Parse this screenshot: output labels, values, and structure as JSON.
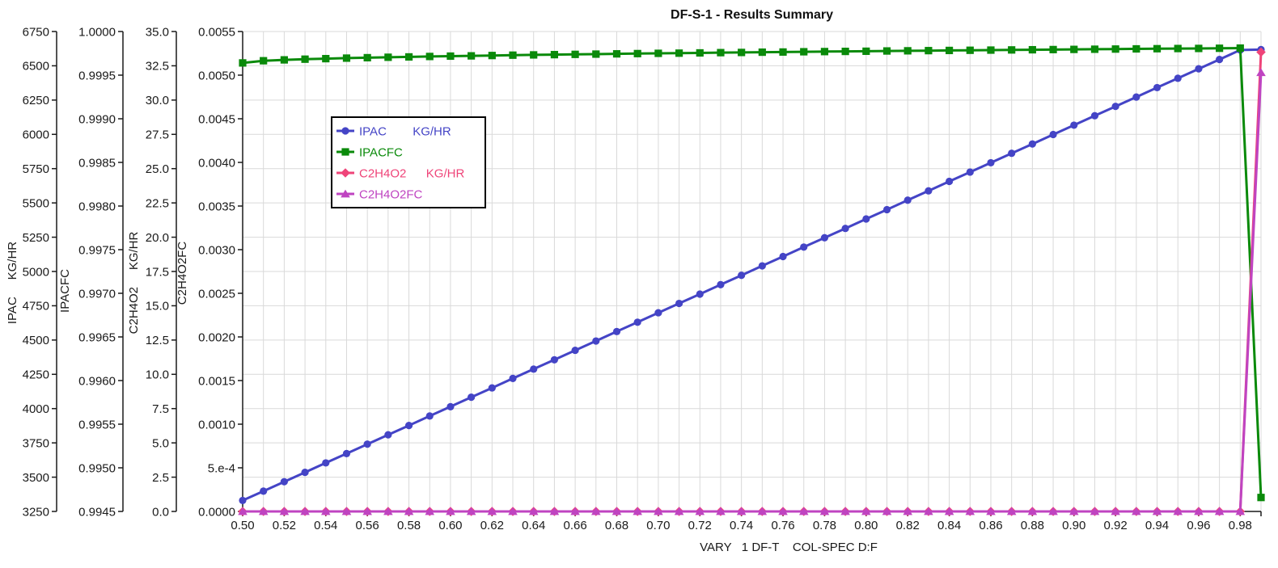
{
  "title": "DF-S-1 - Results Summary",
  "x_axis": {
    "label": "VARY   1 DF-T    COL-SPEC D:F",
    "min": 0.5,
    "max": 0.99,
    "tick_step": 0.02,
    "grid_step": 0.01,
    "tick_labels": [
      "0.50",
      "0.52",
      "0.54",
      "0.56",
      "0.58",
      "0.60",
      "0.62",
      "0.64",
      "0.66",
      "0.68",
      "0.70",
      "0.72",
      "0.74",
      "0.76",
      "0.78",
      "0.80",
      "0.82",
      "0.84",
      "0.86",
      "0.88",
      "0.90",
      "0.92",
      "0.94",
      "0.96",
      "0.98"
    ]
  },
  "y_axes": [
    {
      "id": "ipac",
      "title_parts": [
        "IPAC",
        "KG/HR"
      ],
      "min": 3250,
      "max": 6750,
      "tick_labels": [
        "6750",
        "6500",
        "6250",
        "6000",
        "5750",
        "5500",
        "5250",
        "5000",
        "4750",
        "4500",
        "4250",
        "4000",
        "3750",
        "3500",
        "3250"
      ]
    },
    {
      "id": "ipacfc",
      "title_parts": [
        "IPACFC"
      ],
      "min": 0.9945,
      "max": 1.0,
      "tick_labels": [
        "1.0000",
        "0.9995",
        "0.9990",
        "0.9985",
        "0.9980",
        "0.9975",
        "0.9970",
        "0.9965",
        "0.9960",
        "0.9955",
        "0.9950",
        "0.9945"
      ]
    },
    {
      "id": "c2h4o2",
      "title_parts": [
        "C2H4O2",
        "KG/HR"
      ],
      "min": 0.0,
      "max": 35.0,
      "tick_labels": [
        "35.0",
        "32.5",
        "30.0",
        "27.5",
        "25.0",
        "22.5",
        "20.0",
        "17.5",
        "15.0",
        "12.5",
        "10.0",
        "7.5",
        "5.0",
        "2.5",
        "0.0"
      ]
    },
    {
      "id": "c2h4o2fc",
      "title_parts": [
        "C2H4O2FC"
      ],
      "min": 0.0,
      "max": 0.0055,
      "tick_labels": [
        "0.0055",
        "0.0050",
        "0.0045",
        "0.0040",
        "0.0035",
        "0.0030",
        "0.0025",
        "0.0020",
        "0.0015",
        "0.0010",
        "5.e-4",
        "0.0000"
      ]
    }
  ],
  "colors": {
    "ipac": "#4444c6",
    "ipacfc": "#0a8a0a",
    "c2h4o2": "#ef4479",
    "c2h4o2fc": "#bf44c1",
    "grid": "#d9d9d9",
    "axis": "#1a1a1a",
    "tick_text": "#1a1a1a",
    "legend_border": "#000000",
    "legend_bg": "#ffffff"
  },
  "chart_data": {
    "type": "line",
    "x": [
      0.5,
      0.51,
      0.52,
      0.53,
      0.54,
      0.55,
      0.56,
      0.57,
      0.58,
      0.59,
      0.6,
      0.61,
      0.62,
      0.63,
      0.64,
      0.65,
      0.66,
      0.67,
      0.68,
      0.69,
      0.7,
      0.71,
      0.72,
      0.73,
      0.74,
      0.75,
      0.76,
      0.77,
      0.78,
      0.79,
      0.8,
      0.81,
      0.82,
      0.83,
      0.84,
      0.85,
      0.86,
      0.87,
      0.88,
      0.89,
      0.9,
      0.91,
      0.92,
      0.93,
      0.94,
      0.95,
      0.96,
      0.97,
      0.98,
      0.99
    ],
    "series": [
      {
        "name": "IPAC",
        "units": "KG/HR",
        "axis": 0,
        "marker": "circle",
        "color": "#4444c6",
        "values": [
          3330,
          3398,
          3467,
          3535,
          3604,
          3672,
          3741,
          3809,
          3877,
          3946,
          4014,
          4083,
          4151,
          4220,
          4288,
          4356,
          4425,
          4493,
          4562,
          4630,
          4699,
          4767,
          4835,
          4904,
          4972,
          5041,
          5109,
          5178,
          5246,
          5314,
          5383,
          5451,
          5520,
          5588,
          5657,
          5725,
          5793,
          5862,
          5930,
          5999,
          6067,
          6136,
          6204,
          6272,
          6341,
          6409,
          6478,
          6546,
          6615,
          6618
        ]
      },
      {
        "name": "IPACFC",
        "units": "",
        "axis": 1,
        "marker": "square",
        "color": "#0a8a0a",
        "values": [
          0.99964,
          0.999665,
          0.999675,
          0.999683,
          0.999689,
          0.999695,
          0.9997,
          0.999705,
          0.999709,
          0.999714,
          0.999718,
          0.999721,
          0.999725,
          0.999729,
          0.999732,
          0.999735,
          0.999738,
          0.999741,
          0.999744,
          0.999747,
          0.99975,
          0.999752,
          0.999755,
          0.999758,
          0.99976,
          0.999763,
          0.999765,
          0.999768,
          0.99977,
          0.999772,
          0.999774,
          0.999777,
          0.999779,
          0.999781,
          0.999783,
          0.999785,
          0.999787,
          0.999789,
          0.999791,
          0.999793,
          0.999795,
          0.999797,
          0.999799,
          0.999801,
          0.999803,
          0.999805,
          0.999806,
          0.999808,
          0.99981,
          0.99466
        ]
      },
      {
        "name": "C2H4O2",
        "units": "KG/HR",
        "axis": 2,
        "marker": "diamond",
        "color": "#ef4479",
        "values": [
          0.0,
          0.0,
          0.0,
          0.0,
          0.0,
          0.0,
          0.0,
          0.0,
          0.0,
          0.0,
          0.0,
          0.0,
          0.0,
          0.0,
          0.0,
          0.0,
          0.0,
          0.0,
          0.0,
          0.0,
          0.0,
          0.0,
          0.0,
          0.0,
          0.0,
          0.0,
          0.0,
          0.0,
          0.0,
          0.0,
          0.0,
          0.0,
          0.0,
          0.0,
          0.0,
          0.0,
          0.0,
          0.0,
          0.0,
          0.0,
          0.0,
          0.0,
          0.0,
          0.0,
          0.0,
          0.0,
          0.0,
          0.0,
          0.0,
          33.5
        ]
      },
      {
        "name": "C2H4O2FC",
        "units": "",
        "axis": 3,
        "marker": "triangle",
        "color": "#bf44c1",
        "values": [
          0.0,
          0.0,
          0.0,
          0.0,
          0.0,
          0.0,
          0.0,
          0.0,
          0.0,
          0.0,
          0.0,
          0.0,
          0.0,
          0.0,
          0.0,
          0.0,
          0.0,
          0.0,
          0.0,
          0.0,
          0.0,
          0.0,
          0.0,
          0.0,
          0.0,
          0.0,
          0.0,
          0.0,
          0.0,
          0.0,
          0.0,
          0.0,
          0.0,
          0.0,
          0.0,
          0.0,
          0.0,
          0.0,
          0.0,
          0.0,
          0.0,
          0.0,
          0.0,
          0.0,
          0.0,
          0.0,
          0.0,
          0.0,
          0.0,
          0.00503
        ]
      }
    ],
    "legend_position": "upper-left-inside",
    "grid": true
  }
}
